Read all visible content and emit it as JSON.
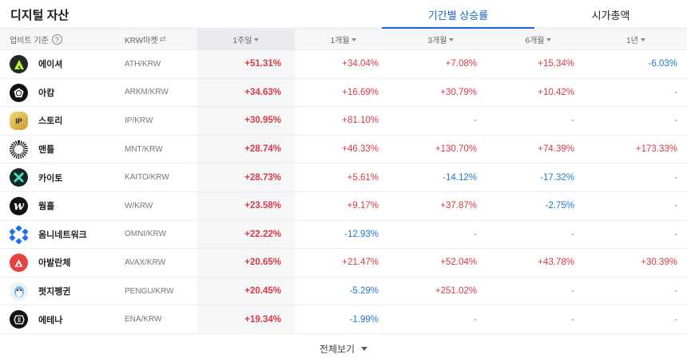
{
  "header": {
    "title": "디지털 자산",
    "tabs": [
      {
        "label": "기간별 상승률",
        "active": true
      },
      {
        "label": "시가총액",
        "active": false
      }
    ]
  },
  "columns": {
    "basis_label": "업비트 기준",
    "help_icon": "?",
    "market_label": "KRW마켓",
    "market_icon": "⇄",
    "periods": [
      "1주일",
      "1개월",
      "3개월",
      "6개월",
      "1년"
    ],
    "active_period": "1주일"
  },
  "colors": {
    "accent": "#1763d8",
    "up": "#d93a47",
    "down": "#1f78d1"
  },
  "rows": [
    {
      "name": "에이셔",
      "pair": "ATH/KRW",
      "icon": "aethir-icon",
      "w1": "+51.31%",
      "m1": "+34.04%",
      "m3": "+7.08%",
      "m6": "+15.34%",
      "y1": "-6.03%"
    },
    {
      "name": "아캄",
      "pair": "ARKM/KRW",
      "icon": "arkham-icon",
      "w1": "+34.63%",
      "m1": "+16.69%",
      "m3": "+30.79%",
      "m6": "+10.42%",
      "y1": "-"
    },
    {
      "name": "스토리",
      "pair": "IP/KRW",
      "icon": "story-icon",
      "w1": "+30.95%",
      "m1": "+81.10%",
      "m3": "-",
      "m6": "-",
      "y1": "-"
    },
    {
      "name": "맨틀",
      "pair": "MNT/KRW",
      "icon": "mantle-icon",
      "w1": "+28.74%",
      "m1": "+46.33%",
      "m3": "+130.70%",
      "m6": "+74.39%",
      "y1": "+173.33%"
    },
    {
      "name": "카이토",
      "pair": "KAITO/KRW",
      "icon": "kaito-icon",
      "w1": "+28.73%",
      "m1": "+5.61%",
      "m3": "-14.12%",
      "m6": "-17.32%",
      "y1": "-"
    },
    {
      "name": "웜홀",
      "pair": "W/KRW",
      "icon": "wormhole-icon",
      "w1": "+23.58%",
      "m1": "+9.17%",
      "m3": "+37.87%",
      "m6": "-2.75%",
      "y1": "-"
    },
    {
      "name": "옴니네트워크",
      "pair": "OMNI/KRW",
      "icon": "omni-icon",
      "w1": "+22.22%",
      "m1": "-12.93%",
      "m3": "-",
      "m6": "-",
      "y1": "-"
    },
    {
      "name": "아발란체",
      "pair": "AVAX/KRW",
      "icon": "avalanche-icon",
      "w1": "+20.65%",
      "m1": "+21.47%",
      "m3": "+52.04%",
      "m6": "+43.78%",
      "y1": "+30.39%"
    },
    {
      "name": "펏지펭귄",
      "pair": "PENGU/KRW",
      "icon": "pengu-icon",
      "w1": "+20.45%",
      "m1": "-5.29%",
      "m3": "+251.02%",
      "m6": "-",
      "y1": "-"
    },
    {
      "name": "에테나",
      "pair": "ENA/KRW",
      "icon": "ethena-icon",
      "w1": "+19.34%",
      "m1": "-1.99%",
      "m3": "-",
      "m6": "-",
      "y1": "-"
    }
  ],
  "footer": {
    "view_all_label": "전체보기"
  }
}
